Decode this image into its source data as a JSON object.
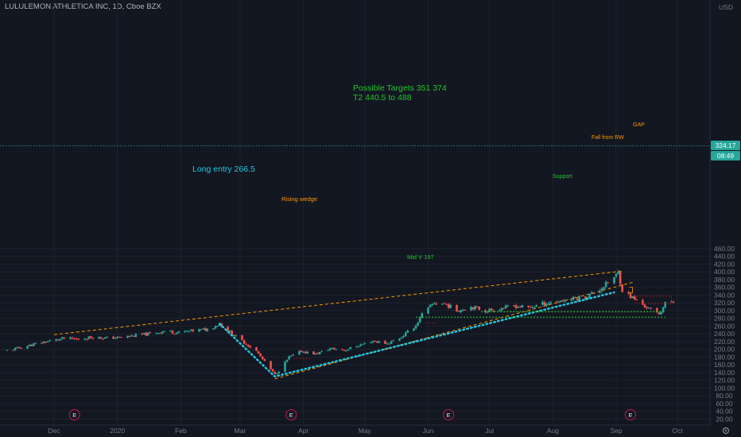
{
  "header": {
    "title": "LULULEMON ATHLETICA INC, 1D, Cboe BZX"
  },
  "price_axis": {
    "currency": "USD",
    "last_price": "324.17",
    "countdown": "08:49"
  },
  "colors": {
    "bg": "#131722",
    "grid": "#1e222d",
    "up": "#26a69a",
    "down": "#ef5350",
    "annotation_green": "#23c42a",
    "annotation_orange": "#ff9800",
    "annotation_blue": "#26c6da"
  },
  "chart_data": {
    "type": "candlestick",
    "title": "LULULEMON ATHLETICA INC, 1D, Cboe BZX",
    "ylim": [
      14,
      480
    ],
    "y_ticks": [
      20,
      40,
      60,
      80,
      100,
      120,
      140,
      160,
      180,
      200,
      220,
      240,
      260,
      280,
      300,
      320,
      340,
      360,
      380,
      400,
      420,
      440,
      460
    ],
    "x_ticks": [
      {
        "label": "Dec",
        "date": "2019-12-01"
      },
      {
        "label": "2020",
        "date": "2020-01-01"
      },
      {
        "label": "Feb",
        "date": "2020-02-01"
      },
      {
        "label": "Mar",
        "date": "2020-03-01"
      },
      {
        "label": "Apr",
        "date": "2020-04-01"
      },
      {
        "label": "May",
        "date": "2020-05-01"
      },
      {
        "label": "Jun",
        "date": "2020-06-01"
      },
      {
        "label": "Jul",
        "date": "2020-07-01"
      },
      {
        "label": "Aug",
        "date": "2020-08-01"
      },
      {
        "label": "Sep",
        "date": "2020-09-01"
      },
      {
        "label": "Oct",
        "date": "2020-10-01"
      }
    ],
    "close_path": [
      [
        "2019-11-08",
        197
      ],
      [
        "2019-11-15",
        205
      ],
      [
        "2019-11-22",
        214
      ],
      [
        "2019-11-29",
        222
      ],
      [
        "2019-12-06",
        228
      ],
      [
        "2019-12-13",
        226
      ],
      [
        "2019-12-20",
        232
      ],
      [
        "2019-12-27",
        229
      ],
      [
        "2020-01-03",
        231
      ],
      [
        "2020-01-10",
        236
      ],
      [
        "2020-01-17",
        240
      ],
      [
        "2020-01-24",
        247
      ],
      [
        "2020-01-31",
        243
      ],
      [
        "2020-02-07",
        248
      ],
      [
        "2020-02-14",
        252
      ],
      [
        "2020-02-20",
        266
      ],
      [
        "2020-02-26",
        240
      ],
      [
        "2020-03-03",
        218
      ],
      [
        "2020-03-09",
        195
      ],
      [
        "2020-03-13",
        168
      ],
      [
        "2020-03-18",
        135
      ],
      [
        "2020-03-20",
        145
      ],
      [
        "2020-03-25",
        180
      ],
      [
        "2020-03-31",
        195
      ],
      [
        "2020-04-07",
        188
      ],
      [
        "2020-04-14",
        202
      ],
      [
        "2020-04-21",
        198
      ],
      [
        "2020-04-28",
        210
      ],
      [
        "2020-05-05",
        222
      ],
      [
        "2020-05-12",
        215
      ],
      [
        "2020-05-19",
        232
      ],
      [
        "2020-05-26",
        262
      ],
      [
        "2020-05-29",
        290
      ],
      [
        "2020-06-04",
        320
      ],
      [
        "2020-06-09",
        318
      ],
      [
        "2020-06-15",
        300
      ],
      [
        "2020-06-22",
        310
      ],
      [
        "2020-06-29",
        300
      ],
      [
        "2020-07-06",
        305
      ],
      [
        "2020-07-13",
        312
      ],
      [
        "2020-07-20",
        308
      ],
      [
        "2020-07-27",
        318
      ],
      [
        "2020-08-03",
        324
      ],
      [
        "2020-08-10",
        330
      ],
      [
        "2020-08-17",
        335
      ],
      [
        "2020-08-24",
        355
      ],
      [
        "2020-08-31",
        385
      ],
      [
        "2020-09-02",
        398
      ],
      [
        "2020-09-04",
        352
      ],
      [
        "2020-09-09",
        333
      ],
      [
        "2020-09-14",
        315
      ],
      [
        "2020-09-18",
        302
      ],
      [
        "2020-09-22",
        292
      ],
      [
        "2020-09-25",
        318
      ],
      [
        "2020-09-29",
        324
      ]
    ],
    "series": [
      {
        "name": "Rising wedge",
        "kind": "trendline",
        "points": [
          [
            "2019-12-01",
            238
          ],
          [
            "2020-09-04",
            402
          ]
        ]
      },
      {
        "name": "Rising wedge",
        "kind": "trendline",
        "points": [
          [
            "2020-03-18",
            124
          ],
          [
            "2020-09-09",
            373
          ]
        ]
      },
      {
        "name": "Mid V 197",
        "kind": "dotted_path",
        "points": [
          [
            "2020-02-20",
            266
          ],
          [
            "2020-03-18",
            130
          ],
          [
            "2020-08-31",
            347
          ]
        ]
      },
      {
        "name": "Support",
        "kind": "level",
        "points": [
          [
            "2020-05-26",
            283
          ],
          [
            "2020-09-25",
            283
          ]
        ]
      },
      {
        "name": "Support",
        "kind": "level",
        "points": [
          [
            "2020-06-27",
            297
          ],
          [
            "2020-09-25",
            297
          ]
        ]
      }
    ],
    "annotations": {
      "targets_line1": "Possible Targets   351  374",
      "targets_line2": "T2  440.5 to 488",
      "long_entry": "Long entry 266.5",
      "rising_wedge": "Rising wedge",
      "mid_v": "Mid V  197",
      "support": "Support",
      "gap": "GAP",
      "fall_rw": "Fall from RW"
    },
    "earnings_markers": [
      {
        "label": "E",
        "date": "2019-12-11"
      },
      {
        "label": "E",
        "date": "2020-03-26"
      },
      {
        "label": "E",
        "date": "2020-06-11"
      },
      {
        "label": "E",
        "date": "2020-09-08"
      }
    ]
  }
}
